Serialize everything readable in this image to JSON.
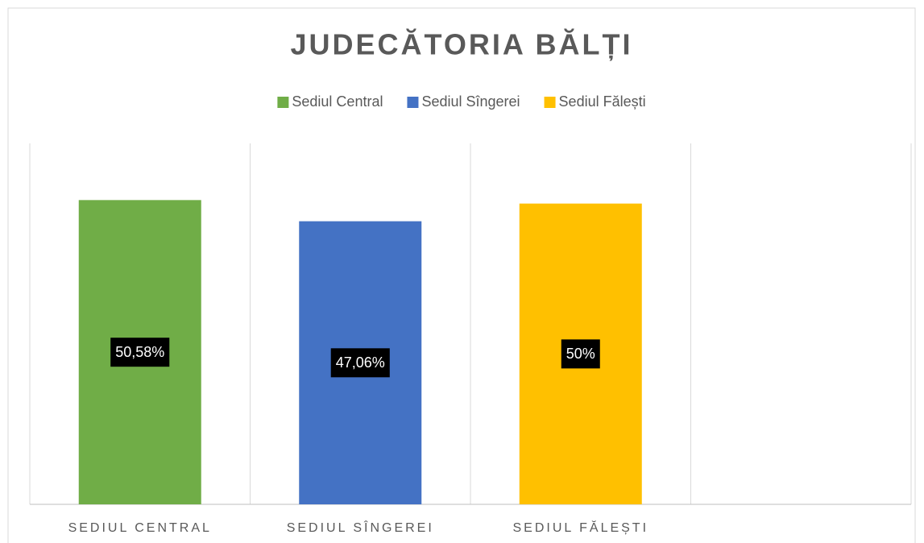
{
  "chart_data": {
    "type": "bar",
    "title": "JUDECĂTORIA BĂLȚI",
    "categories": [
      "SEDIUL CENTRAL",
      "SEDIUL SÎNGEREI",
      "SEDIUL FĂLEȘTI",
      null
    ],
    "series": [
      {
        "name": "Sediul Central",
        "color": "#70ad47",
        "values": [
          50.58,
          null,
          null,
          null
        ],
        "value_labels": [
          "50,58%",
          null,
          null,
          null
        ]
      },
      {
        "name": "Sediul Sîngerei",
        "color": "#4472c4",
        "values": [
          null,
          47.06,
          null,
          null
        ],
        "value_labels": [
          null,
          "47,06%",
          null,
          null
        ]
      },
      {
        "name": "Sediul Fălești",
        "color": "#ffc000",
        "values": [
          null,
          null,
          50,
          null
        ],
        "value_labels": [
          null,
          null,
          "50%",
          null
        ]
      }
    ],
    "ylim": [
      0,
      60
    ],
    "legend": "top"
  }
}
